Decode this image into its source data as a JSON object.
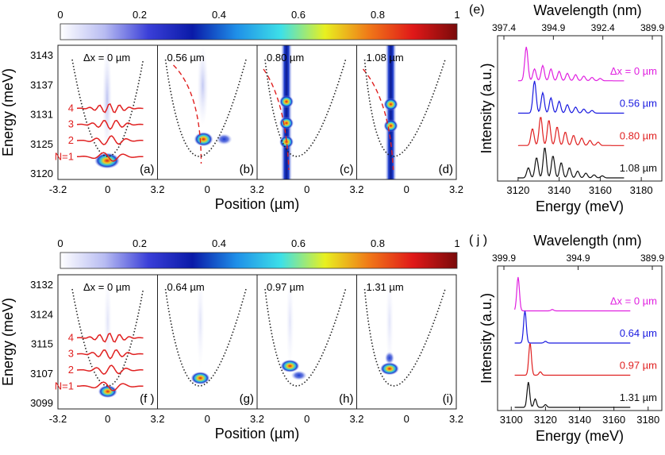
{
  "colorbar": {
    "ticks": [
      "0",
      "0.2",
      "0.4",
      "0.6",
      "0.8",
      "1"
    ],
    "stops": [
      "#ffffff",
      "#b8bcf2",
      "#3a3fd8",
      "#0a1aa8",
      "#1f8fe8",
      "#3de0e8",
      "#e8f020",
      "#f07818",
      "#e01818",
      "#7a0a0a"
    ]
  },
  "colors": {
    "magenta": "#e020e0",
    "blue": "#1a1ae0",
    "red": "#e02020",
    "black": "#111111",
    "model_red": "#e02020"
  },
  "top": {
    "ylabel": "Energy (meV)",
    "xlabel": "Position (µm)",
    "yticks": [
      "3143",
      "3137",
      "3131",
      "3125",
      "3120"
    ],
    "xticks": [
      "-3.2",
      "0",
      "3.2",
      "0",
      "3.2",
      "0",
      "3.2",
      "0",
      "3.2"
    ],
    "panels": [
      {
        "letter": "(a)",
        "label": "Δx = 0 µm"
      },
      {
        "letter": "(b)",
        "label": "0.56 µm"
      },
      {
        "letter": "(c)",
        "label": "0.80 µm"
      },
      {
        "letter": "(d)",
        "label": "1.08 µm"
      }
    ],
    "modes": [
      "4",
      "3",
      "2",
      "N=1"
    ]
  },
  "bottom": {
    "ylabel": "Energy (meV)",
    "xlabel": "Position (µm)",
    "yticks": [
      "3132",
      "3124",
      "3115",
      "3107",
      "3099"
    ],
    "xticks": [
      "-3.2",
      "0",
      "3.2",
      "0",
      "3.2",
      "0",
      "3.2",
      "0",
      "3.2"
    ],
    "panels": [
      {
        "letter": "(f )",
        "label": "Δx = 0 µm"
      },
      {
        "letter": "(g)",
        "label": "0.64 µm"
      },
      {
        "letter": "(h)",
        "label": "0.97 µm"
      },
      {
        "letter": "(i)",
        "label": "1.31 µm"
      }
    ],
    "modes": [
      "4",
      "3",
      "2",
      "N=1"
    ]
  },
  "chart_data": [
    {
      "type": "line",
      "panel": "(e)",
      "title": "Wavelength (nm)",
      "top_ticks": [
        "397.4",
        "394.9",
        "392.4",
        "389.9"
      ],
      "xlabel": "Energy (meV)",
      "ylabel": "Intensity (a.u.)",
      "xlim": [
        3110,
        3190
      ],
      "xticks": [
        3120,
        3140,
        3160,
        3180
      ],
      "series": [
        {
          "name": "Δx = 0 µm",
          "color": "#e020e0",
          "peaks": [
            [
              3124,
              1.0
            ],
            [
              3128,
              0.35
            ],
            [
              3132,
              0.45
            ],
            [
              3136,
              0.35
            ],
            [
              3140,
              0.28
            ],
            [
              3144,
              0.22
            ],
            [
              3148,
              0.18
            ],
            [
              3152,
              0.14
            ],
            [
              3156,
              0.1
            ],
            [
              3160,
              0.07
            ]
          ]
        },
        {
          "name": "0.56 µm",
          "color": "#1a1ae0",
          "peaks": [
            [
              3128,
              0.95
            ],
            [
              3132,
              0.6
            ],
            [
              3136,
              0.45
            ],
            [
              3140,
              0.35
            ],
            [
              3144,
              0.25
            ],
            [
              3148,
              0.18
            ],
            [
              3152,
              0.12
            ],
            [
              3156,
              0.08
            ]
          ]
        },
        {
          "name": "0.80 µm",
          "color": "#e02020",
          "peaks": [
            [
              3127,
              0.5
            ],
            [
              3131,
              0.85
            ],
            [
              3135,
              0.75
            ],
            [
              3139,
              0.55
            ],
            [
              3143,
              0.4
            ],
            [
              3147,
              0.3
            ],
            [
              3151,
              0.22
            ],
            [
              3155,
              0.15
            ],
            [
              3159,
              0.1
            ]
          ]
        },
        {
          "name": "1.08 µm",
          "color": "#111111",
          "peaks": [
            [
              3125,
              0.3
            ],
            [
              3129,
              0.6
            ],
            [
              3133,
              0.9
            ],
            [
              3137,
              0.65
            ],
            [
              3141,
              0.45
            ],
            [
              3145,
              0.3
            ],
            [
              3149,
              0.2
            ],
            [
              3153,
              0.14
            ],
            [
              3157,
              0.09
            ],
            [
              3161,
              0.06
            ]
          ]
        }
      ]
    },
    {
      "type": "line",
      "panel": "( j )",
      "title": "Wavelength (nm)",
      "top_ticks": [
        "399.9",
        "394.9",
        "389.9"
      ],
      "xlabel": "Energy (meV)",
      "ylabel": "Intensity (a.u.)",
      "xlim": [
        3092,
        3188
      ],
      "xticks": [
        3100,
        3120,
        3140,
        3160,
        3180
      ],
      "series": [
        {
          "name": "Δx = 0 µm",
          "color": "#e020e0",
          "peaks": [
            [
              3104,
              1.0
            ],
            [
              3124,
              0.04
            ]
          ]
        },
        {
          "name": "0.64 µm",
          "color": "#1a1ae0",
          "peaks": [
            [
              3108,
              0.95
            ],
            [
              3120,
              0.05
            ]
          ]
        },
        {
          "name": "0.97 µm",
          "color": "#e02020",
          "peaks": [
            [
              3111,
              0.95
            ],
            [
              3117,
              0.1
            ]
          ]
        },
        {
          "name": "1.31 µm",
          "color": "#111111",
          "peaks": [
            [
              3110,
              0.75
            ],
            [
              3114,
              0.25
            ],
            [
              3120,
              0.08
            ]
          ]
        }
      ]
    }
  ]
}
